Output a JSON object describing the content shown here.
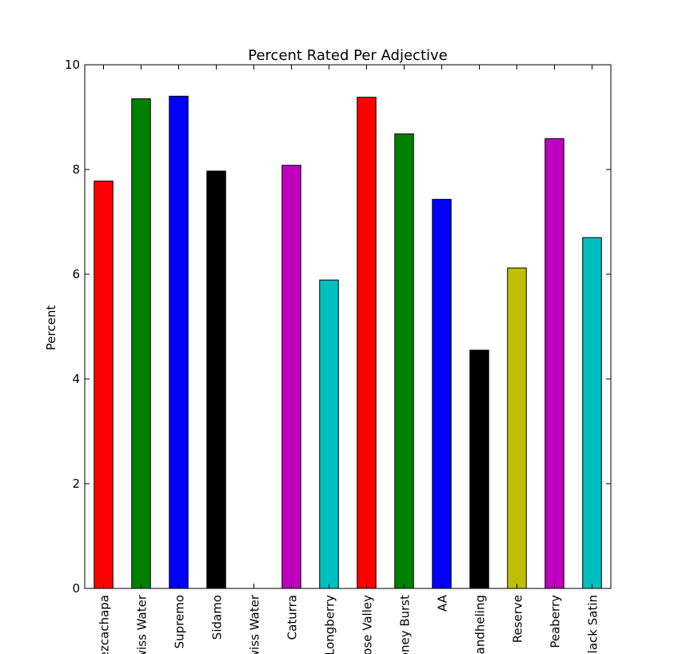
{
  "chart_data": {
    "type": "bar",
    "title": "Percent Rated Per Adjective",
    "xlabel": "",
    "ylabel": "Percent",
    "ylim": [
      0,
      10
    ],
    "yticks": [
      0,
      2,
      4,
      6,
      8,
      10
    ],
    "grid": false,
    "categories": [
      "Pezcachapa",
      "Swiss Water",
      "Supremo",
      "Sidamo",
      "Swiss Water",
      "Caturra",
      "Longberry",
      "Rose Valley",
      "Honey Burst",
      "AA",
      "Mandheling",
      "Reserve",
      "Peaberry",
      "Black Satin"
    ],
    "values": [
      7.78,
      9.35,
      9.4,
      7.97,
      0.0,
      8.08,
      5.89,
      9.38,
      8.68,
      7.43,
      4.55,
      6.12,
      8.59,
      6.7
    ],
    "colors": [
      "#ff0000",
      "#008000",
      "#0000ff",
      "#000000",
      "#00bfbf",
      "#bf00bf",
      "#00bfbf",
      "#ff0000",
      "#008000",
      "#0000ff",
      "#000000",
      "#bfbf00",
      "#bf00bf",
      "#00bfbf"
    ]
  }
}
